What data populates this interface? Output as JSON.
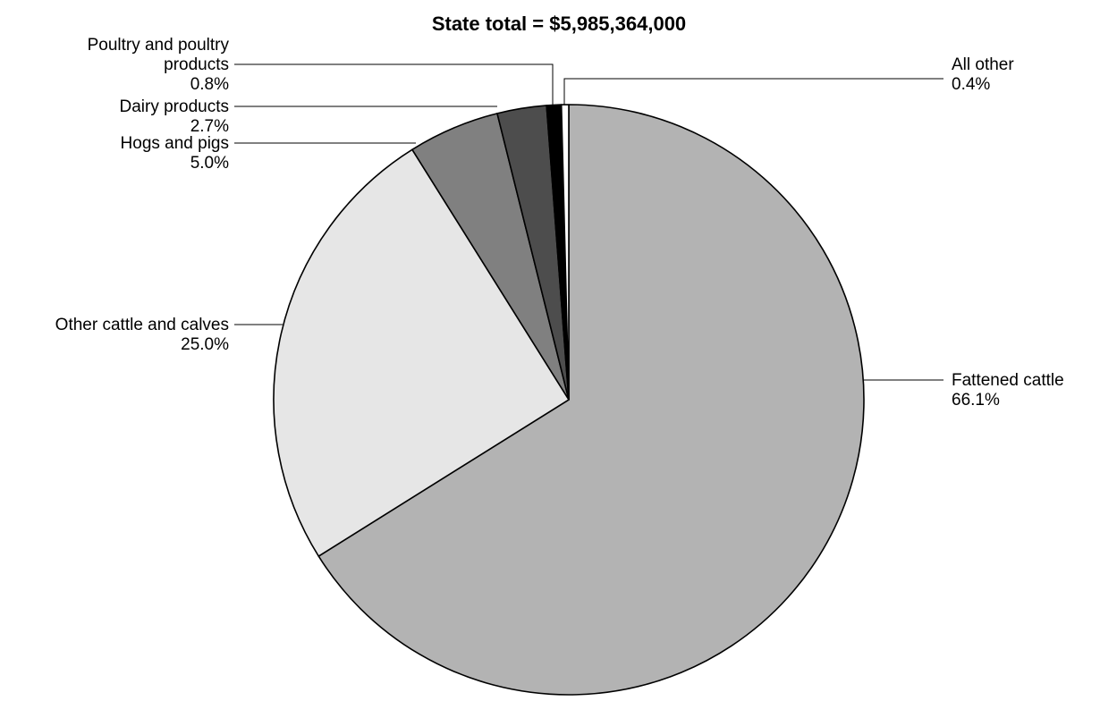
{
  "chart_data": {
    "type": "pie",
    "title": "State total = $5,985,364,000",
    "slices": [
      {
        "label_lines": [
          "Fattened cattle"
        ],
        "value": 66.1,
        "value_label": "66.1%",
        "color": "#b3b3b3"
      },
      {
        "label_lines": [
          "Other cattle and calves"
        ],
        "value": 25.0,
        "value_label": "25.0%",
        "color": "#e6e6e6"
      },
      {
        "label_lines": [
          "Hogs and pigs"
        ],
        "value": 5.0,
        "value_label": "5.0%",
        "color": "#808080"
      },
      {
        "label_lines": [
          "Dairy products"
        ],
        "value": 2.7,
        "value_label": "2.7%",
        "color": "#4d4d4d"
      },
      {
        "label_lines": [
          "Poultry and poultry",
          "products"
        ],
        "value": 0.8,
        "value_label": "0.8%",
        "color": "#000000"
      },
      {
        "label_lines": [
          "All other"
        ],
        "value": 0.4,
        "value_label": "0.4%",
        "color": "#ffffff"
      }
    ]
  }
}
